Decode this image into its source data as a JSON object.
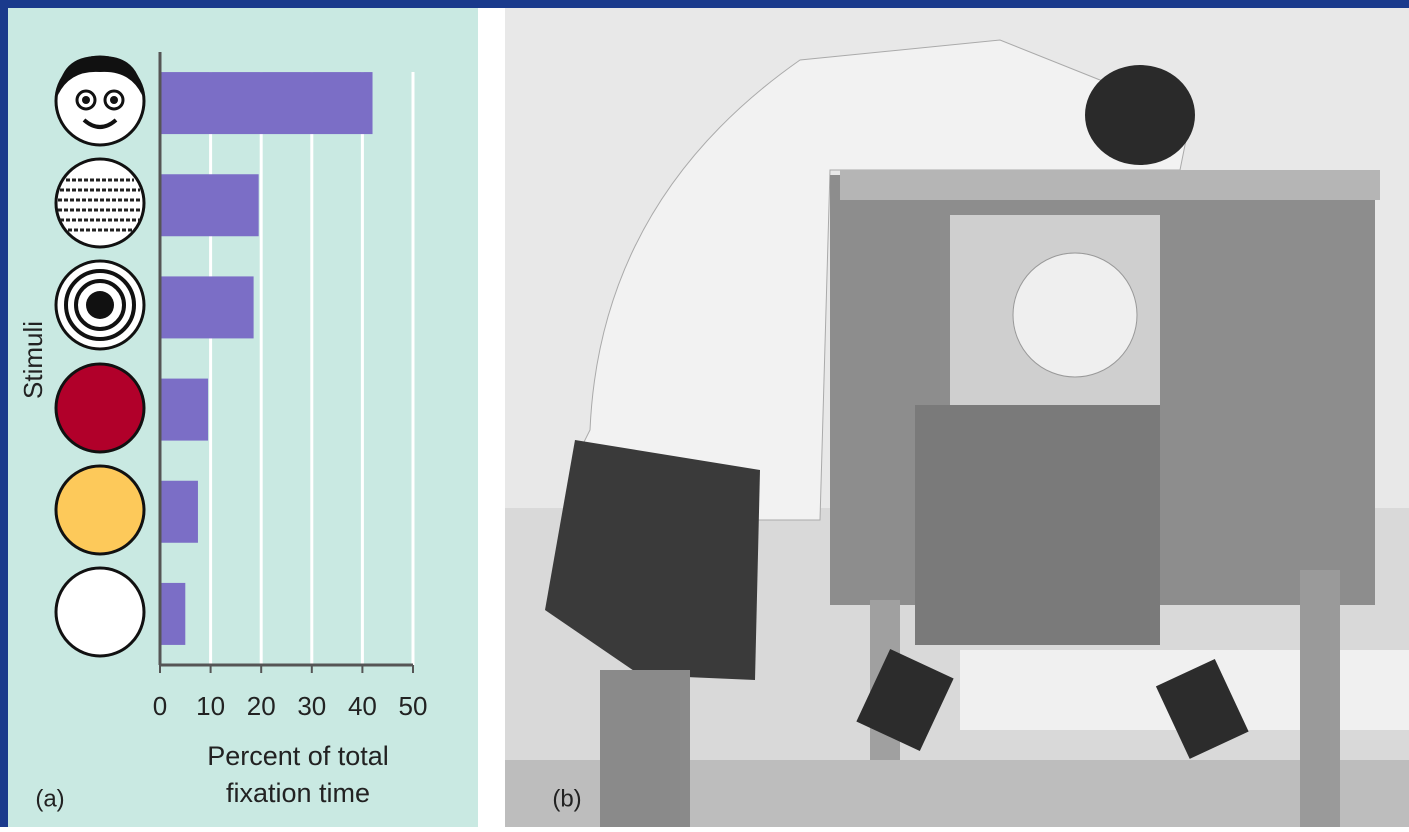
{
  "chart_data": {
    "type": "barh",
    "ylabel": "Stimuli",
    "xlabel": [
      "Percent of total",
      "fixation time"
    ],
    "categories": [
      null,
      null,
      null,
      null,
      null,
      null
    ],
    "values": [
      42,
      19.5,
      18.5,
      9.5,
      7.5,
      5
    ],
    "color": "#7b6ec6",
    "xlim": [
      0,
      50
    ],
    "xticks": [
      0,
      10,
      20,
      30,
      40,
      50
    ],
    "grid": true,
    "panel_labels": [
      "(a)",
      "(b)"
    ]
  }
}
